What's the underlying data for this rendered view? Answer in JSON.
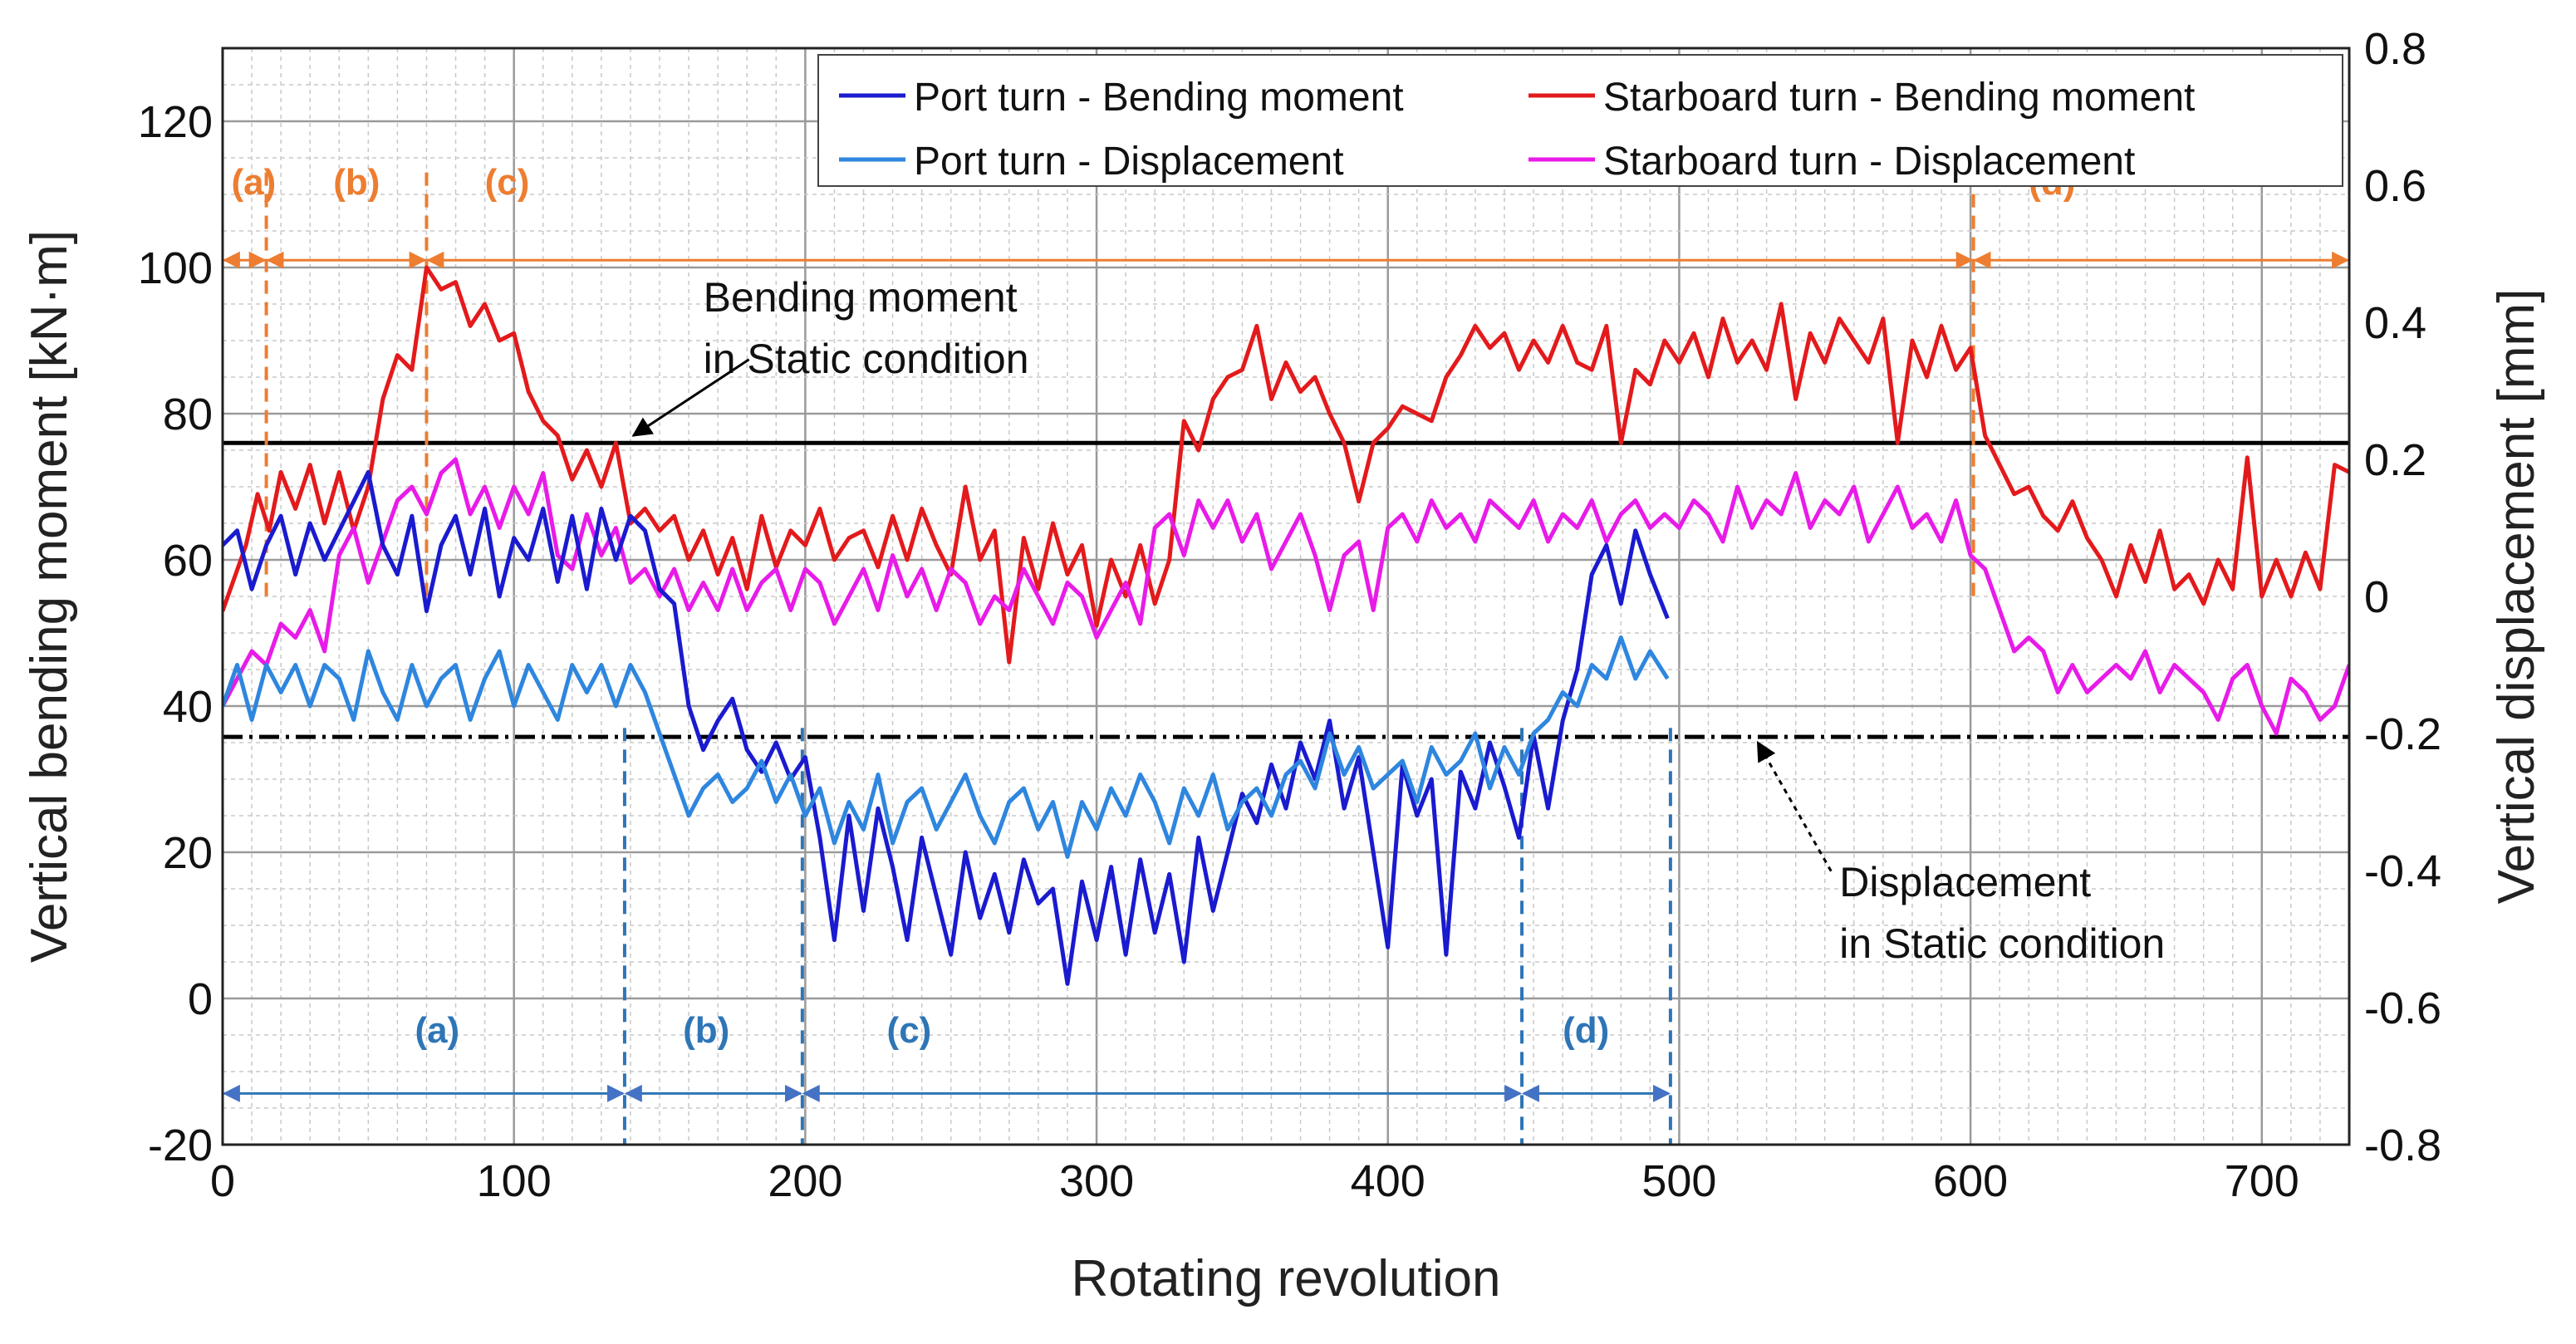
{
  "chart_data": {
    "type": "line",
    "xlabel": "Rotating revolution",
    "ylabel_left": "Vertical bending moment [kN·m]",
    "ylabel_right": "Vertical displacement [mm]",
    "xlim": [
      0,
      730
    ],
    "ylim_left": [
      -20,
      130
    ],
    "ylim_right": [
      -0.8,
      0.8
    ],
    "xticks": [
      "0",
      "100",
      "200",
      "300",
      "400",
      "500",
      "600",
      "700"
    ],
    "yticks_left": [
      "-20",
      "0",
      "20",
      "40",
      "60",
      "80",
      "100",
      "120"
    ],
    "yticks_right": [
      "-0.8",
      "-0.6",
      "-0.4",
      "-0.2",
      "0",
      "0.2",
      "0.4",
      "0.6",
      "0.8"
    ],
    "grid": true,
    "legend": {
      "placement": "top-right",
      "entries": [
        {
          "label": "Port turn - Bending moment",
          "color": "#1A1ACF"
        },
        {
          "label": "Starboard turn - Bending moment",
          "color": "#E31A1C"
        },
        {
          "label": "Port turn - Displacement",
          "color": "#2E86DE"
        },
        {
          "label": "Starboard turn - Displacement",
          "color": "#E81BE8"
        }
      ]
    },
    "static_lines": [
      {
        "axis": "left",
        "y": 76,
        "style": "solid",
        "color": "#000000"
      },
      {
        "axis": "right",
        "y": -0.205,
        "style": "dash-dot",
        "color": "#000000"
      }
    ],
    "annotations": [
      {
        "text": [
          "Bending moment",
          "in Static condition"
        ],
        "x": 165,
        "y_left": 94,
        "arrow_to": [
          141,
          77
        ]
      },
      {
        "text": [
          "Displacement",
          "in Static condition"
        ],
        "x": 555,
        "y_left": 14,
        "arrow_to": [
          527,
          35
        ]
      }
    ],
    "starboard_phases": {
      "color": "#ED7D31",
      "boundaries": [
        15,
        70,
        601
      ],
      "labels": [
        {
          "text": "(a)",
          "x": 3
        },
        {
          "text": "(b)",
          "x": 38
        },
        {
          "text": "(c)",
          "x": 90
        },
        {
          "text": "(d)",
          "x": 620
        }
      ],
      "arrow_y_left": 101
    },
    "port_phases": {
      "color": "#2E75B6",
      "boundaries": [
        138,
        199,
        446,
        497
      ],
      "labels": [
        {
          "text": "(a)",
          "x": 66
        },
        {
          "text": "(b)",
          "x": 158
        },
        {
          "text": "(c)",
          "x": 228
        },
        {
          "text": "(d)",
          "x": 460
        }
      ],
      "arrow_y_left": -13
    },
    "series": [
      {
        "name": "Starboard turn - Bending moment",
        "axis": "left",
        "color": "#E31A1C",
        "x": [
          0,
          8,
          12,
          16,
          20,
          25,
          30,
          35,
          40,
          45,
          50,
          55,
          60,
          65,
          70,
          75,
          80,
          85,
          90,
          95,
          100,
          105,
          110,
          115,
          120,
          125,
          130,
          135,
          140,
          145,
          150,
          155,
          160,
          165,
          170,
          175,
          180,
          185,
          190,
          195,
          200,
          205,
          210,
          215,
          220,
          225,
          230,
          235,
          240,
          245,
          250,
          255,
          260,
          265,
          270,
          275,
          280,
          285,
          290,
          295,
          300,
          305,
          310,
          315,
          320,
          325,
          330,
          335,
          340,
          345,
          350,
          355,
          360,
          365,
          370,
          375,
          380,
          385,
          390,
          395,
          400,
          405,
          410,
          415,
          420,
          425,
          430,
          435,
          440,
          445,
          450,
          455,
          460,
          465,
          470,
          475,
          480,
          485,
          490,
          495,
          500,
          505,
          510,
          515,
          520,
          525,
          530,
          535,
          540,
          545,
          550,
          555,
          560,
          565,
          570,
          575,
          580,
          585,
          590,
          595,
          600,
          605,
          610,
          615,
          620,
          625,
          630,
          635,
          640,
          645,
          650,
          655,
          660,
          665,
          670,
          675,
          680,
          685,
          690,
          695,
          700,
          705,
          710,
          715,
          720,
          725,
          730
        ],
        "y": [
          53,
          62,
          69,
          64,
          72,
          67,
          73,
          65,
          72,
          64,
          70,
          82,
          88,
          86,
          100,
          97,
          98,
          92,
          95,
          90,
          91,
          83,
          79,
          77,
          71,
          75,
          70,
          76,
          65,
          67,
          64,
          66,
          60,
          64,
          58,
          63,
          56,
          66,
          59,
          64,
          62,
          67,
          60,
          63,
          64,
          59,
          66,
          60,
          67,
          62,
          58,
          70,
          60,
          64,
          46,
          63,
          56,
          65,
          58,
          62,
          51,
          60,
          55,
          62,
          54,
          60,
          79,
          75,
          82,
          85,
          86,
          92,
          82,
          87,
          83,
          85,
          80,
          76,
          68,
          76,
          78,
          81,
          80,
          79,
          85,
          88,
          92,
          89,
          91,
          86,
          90,
          87,
          92,
          87,
          86,
          92,
          76,
          86,
          84,
          90,
          87,
          91,
          85,
          93,
          87,
          90,
          86,
          95,
          82,
          91,
          87,
          93,
          90,
          87,
          93,
          76,
          90,
          85,
          92,
          86,
          89,
          77,
          73,
          69,
          70,
          66,
          64,
          68,
          63,
          60,
          55,
          62,
          57,
          64,
          56,
          58,
          54,
          60,
          56,
          74,
          55,
          60,
          55,
          61,
          56,
          73,
          72
        ]
      },
      {
        "name": "Starboard turn - Displacement",
        "axis": "right",
        "color": "#E81BE8",
        "x": [
          0,
          5,
          10,
          15,
          20,
          25,
          30,
          35,
          40,
          45,
          50,
          55,
          60,
          65,
          70,
          75,
          80,
          85,
          90,
          95,
          100,
          105,
          110,
          115,
          120,
          125,
          130,
          135,
          140,
          145,
          150,
          155,
          160,
          165,
          170,
          175,
          180,
          185,
          190,
          195,
          200,
          205,
          210,
          215,
          220,
          225,
          230,
          235,
          240,
          245,
          250,
          255,
          260,
          265,
          270,
          275,
          280,
          285,
          290,
          295,
          300,
          305,
          310,
          315,
          320,
          325,
          330,
          335,
          340,
          345,
          350,
          355,
          360,
          365,
          370,
          375,
          380,
          385,
          390,
          395,
          400,
          405,
          410,
          415,
          420,
          425,
          430,
          435,
          440,
          445,
          450,
          455,
          460,
          465,
          470,
          475,
          480,
          485,
          490,
          495,
          500,
          505,
          510,
          515,
          520,
          525,
          530,
          535,
          540,
          545,
          550,
          555,
          560,
          565,
          570,
          575,
          580,
          585,
          590,
          595,
          600,
          605,
          610,
          615,
          620,
          625,
          630,
          635,
          640,
          645,
          650,
          655,
          660,
          665,
          670,
          675,
          680,
          685,
          690,
          695,
          700,
          705,
          710,
          715,
          720,
          725,
          730
        ],
        "y": [
          -0.16,
          -0.12,
          -0.08,
          -0.1,
          -0.04,
          -0.06,
          -0.02,
          -0.08,
          0.06,
          0.1,
          0.02,
          0.08,
          0.14,
          0.16,
          0.12,
          0.18,
          0.2,
          0.12,
          0.16,
          0.1,
          0.16,
          0.12,
          0.18,
          0.06,
          0.04,
          0.12,
          0.06,
          0.1,
          0.02,
          0.04,
          0.0,
          0.04,
          -0.02,
          0.02,
          -0.02,
          0.04,
          -0.02,
          0.02,
          0.04,
          -0.02,
          0.04,
          0.02,
          -0.04,
          0.0,
          0.04,
          -0.02,
          0.06,
          0.0,
          0.04,
          -0.02,
          0.04,
          0.02,
          -0.04,
          0.0,
          -0.02,
          0.04,
          0.0,
          -0.04,
          0.02,
          0.0,
          -0.06,
          -0.02,
          0.02,
          -0.04,
          0.1,
          0.12,
          0.06,
          0.14,
          0.1,
          0.14,
          0.08,
          0.12,
          0.04,
          0.08,
          0.12,
          0.06,
          -0.02,
          0.06,
          0.08,
          -0.02,
          0.1,
          0.12,
          0.08,
          0.14,
          0.1,
          0.12,
          0.08,
          0.14,
          0.12,
          0.1,
          0.14,
          0.08,
          0.12,
          0.1,
          0.14,
          0.08,
          0.12,
          0.14,
          0.1,
          0.12,
          0.1,
          0.14,
          0.12,
          0.08,
          0.16,
          0.1,
          0.14,
          0.12,
          0.18,
          0.1,
          0.14,
          0.12,
          0.16,
          0.08,
          0.12,
          0.16,
          0.1,
          0.12,
          0.08,
          0.14,
          0.06,
          0.04,
          -0.02,
          -0.08,
          -0.06,
          -0.08,
          -0.14,
          -0.1,
          -0.14,
          -0.12,
          -0.1,
          -0.12,
          -0.08,
          -0.14,
          -0.1,
          -0.12,
          -0.14,
          -0.18,
          -0.12,
          -0.1,
          -0.16,
          -0.2,
          -0.12,
          -0.14,
          -0.18,
          -0.16,
          -0.1
        ]
      },
      {
        "name": "Port turn - Bending moment",
        "axis": "left",
        "color": "#1A1ACF",
        "x": [
          0,
          5,
          10,
          15,
          20,
          25,
          30,
          35,
          40,
          45,
          50,
          55,
          60,
          65,
          70,
          75,
          80,
          85,
          90,
          95,
          100,
          105,
          110,
          115,
          120,
          125,
          130,
          135,
          140,
          145,
          150,
          155,
          160,
          165,
          170,
          175,
          180,
          185,
          190,
          195,
          200,
          205,
          210,
          215,
          220,
          225,
          230,
          235,
          240,
          245,
          250,
          255,
          260,
          265,
          270,
          275,
          280,
          285,
          290,
          295,
          300,
          305,
          310,
          315,
          320,
          325,
          330,
          335,
          340,
          345,
          350,
          355,
          360,
          365,
          370,
          375,
          380,
          385,
          390,
          395,
          400,
          405,
          410,
          415,
          420,
          425,
          430,
          435,
          440,
          445,
          450,
          455,
          460,
          465,
          470,
          475,
          480,
          485,
          490,
          496
        ],
        "y": [
          62,
          64,
          56,
          62,
          66,
          58,
          65,
          60,
          64,
          68,
          72,
          62,
          58,
          66,
          53,
          62,
          66,
          58,
          67,
          55,
          63,
          60,
          67,
          57,
          66,
          56,
          67,
          60,
          66,
          64,
          56,
          54,
          40,
          34,
          38,
          41,
          34,
          31,
          35,
          30,
          33,
          22,
          8,
          25,
          12,
          26,
          18,
          8,
          22,
          14,
          6,
          20,
          11,
          17,
          9,
          19,
          13,
          15,
          2,
          16,
          8,
          18,
          6,
          19,
          9,
          17,
          5,
          22,
          12,
          20,
          28,
          24,
          32,
          26,
          35,
          30,
          38,
          26,
          33,
          20,
          7,
          32,
          25,
          30,
          6,
          31,
          26,
          35,
          29,
          22,
          36,
          26,
          38,
          45,
          58,
          62,
          54,
          64,
          58,
          52
        ]
      },
      {
        "name": "Port turn - Displacement",
        "axis": "right",
        "color": "#2E86DE",
        "x": [
          0,
          5,
          10,
          15,
          20,
          25,
          30,
          35,
          40,
          45,
          50,
          55,
          60,
          65,
          70,
          75,
          80,
          85,
          90,
          95,
          100,
          105,
          110,
          115,
          120,
          125,
          130,
          135,
          140,
          145,
          150,
          155,
          160,
          165,
          170,
          175,
          180,
          185,
          190,
          195,
          200,
          205,
          210,
          215,
          220,
          225,
          230,
          235,
          240,
          245,
          250,
          255,
          260,
          265,
          270,
          275,
          280,
          285,
          290,
          295,
          300,
          305,
          310,
          315,
          320,
          325,
          330,
          335,
          340,
          345,
          350,
          355,
          360,
          365,
          370,
          375,
          380,
          385,
          390,
          395,
          400,
          405,
          410,
          415,
          420,
          425,
          430,
          435,
          440,
          445,
          450,
          455,
          460,
          465,
          470,
          475,
          480,
          485,
          490,
          496
        ],
        "y": [
          -0.16,
          -0.1,
          -0.18,
          -0.1,
          -0.14,
          -0.1,
          -0.16,
          -0.1,
          -0.12,
          -0.18,
          -0.08,
          -0.14,
          -0.18,
          -0.1,
          -0.16,
          -0.12,
          -0.1,
          -0.18,
          -0.12,
          -0.08,
          -0.16,
          -0.1,
          -0.14,
          -0.18,
          -0.1,
          -0.14,
          -0.1,
          -0.16,
          -0.1,
          -0.14,
          -0.2,
          -0.26,
          -0.32,
          -0.28,
          -0.26,
          -0.3,
          -0.28,
          -0.24,
          -0.3,
          -0.26,
          -0.32,
          -0.28,
          -0.36,
          -0.3,
          -0.34,
          -0.26,
          -0.36,
          -0.3,
          -0.28,
          -0.34,
          -0.3,
          -0.26,
          -0.32,
          -0.36,
          -0.3,
          -0.28,
          -0.34,
          -0.3,
          -0.38,
          -0.3,
          -0.34,
          -0.28,
          -0.32,
          -0.26,
          -0.3,
          -0.36,
          -0.28,
          -0.32,
          -0.26,
          -0.34,
          -0.3,
          -0.28,
          -0.32,
          -0.26,
          -0.24,
          -0.28,
          -0.2,
          -0.26,
          -0.22,
          -0.28,
          -0.26,
          -0.24,
          -0.3,
          -0.22,
          -0.26,
          -0.24,
          -0.2,
          -0.28,
          -0.22,
          -0.26,
          -0.2,
          -0.18,
          -0.14,
          -0.16,
          -0.1,
          -0.12,
          -0.06,
          -0.12,
          -0.08,
          -0.12
        ]
      }
    ]
  }
}
